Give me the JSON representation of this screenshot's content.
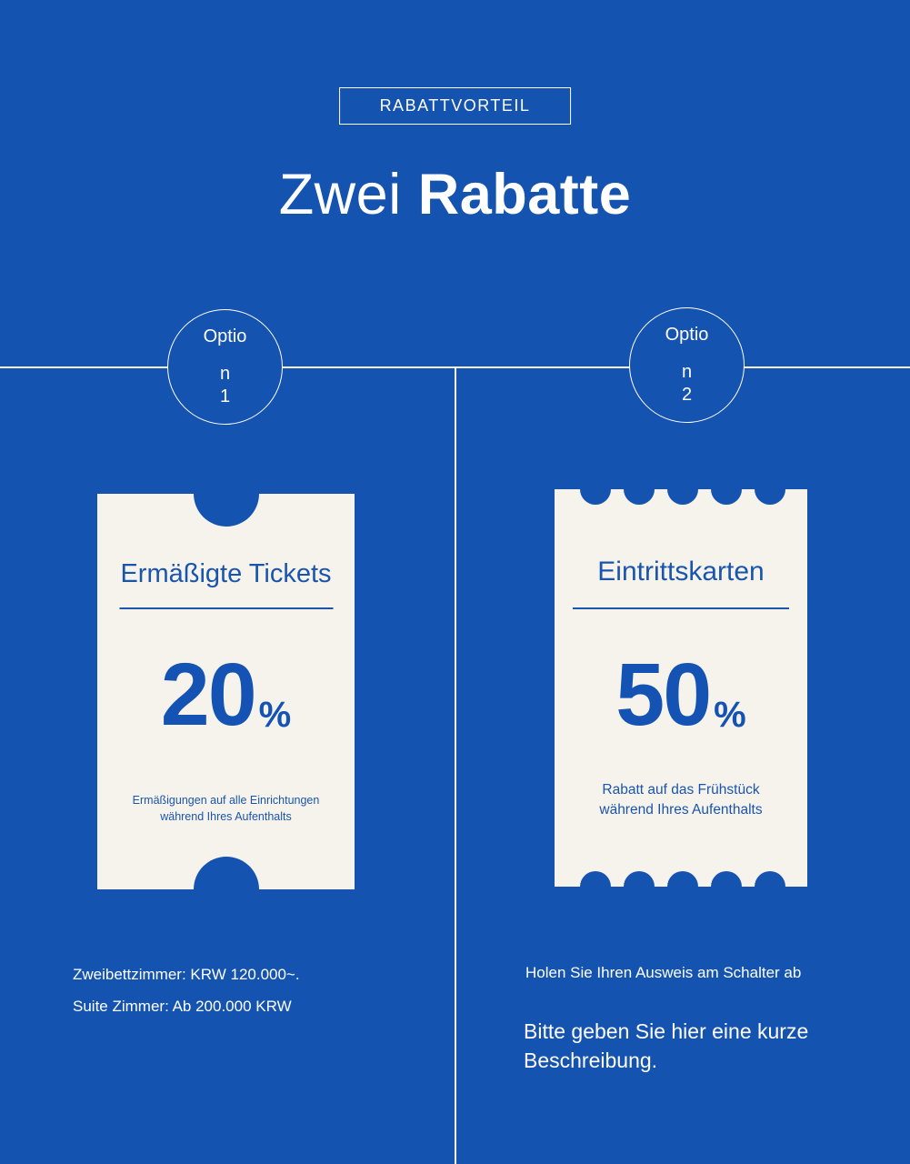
{
  "colors": {
    "background": "#1553b1",
    "ticket_background": "#f6f3ec",
    "ticket_text": "#1a55ad",
    "ticket_number": "#1453b4",
    "text_white": "#ffffff"
  },
  "header": {
    "badge": "RABATTVORTEIL",
    "title_light": "Zwei",
    "title_bold": "Rabatte"
  },
  "left": {
    "circle": {
      "line1": "Optio",
      "line2": "n",
      "line3": "1"
    },
    "ticket": {
      "title": "Ermäßigte Tickets",
      "number": "20",
      "percent": "%",
      "desc_line1": "Ermäßigungen auf alle Einrichtungen",
      "desc_line2": "während Ihres Aufenthalts"
    },
    "footer_line1": "Zweibettzimmer: KRW 120.000~.",
    "footer_line2": "Suite Zimmer: Ab 200.000 KRW"
  },
  "right": {
    "circle": {
      "line1": "Optio",
      "line2": "n",
      "line3": "2"
    },
    "ticket": {
      "title": "Eintrittskarten",
      "number": "50",
      "percent": "%",
      "desc_line1": "Rabatt auf das Frühstück",
      "desc_line2": "während Ihres Aufenthalts"
    },
    "footer_line1": "Holen Sie Ihren Ausweis am Schalter ab",
    "footer_line2": "Bitte geben Sie hier eine kurze Beschreibung."
  }
}
